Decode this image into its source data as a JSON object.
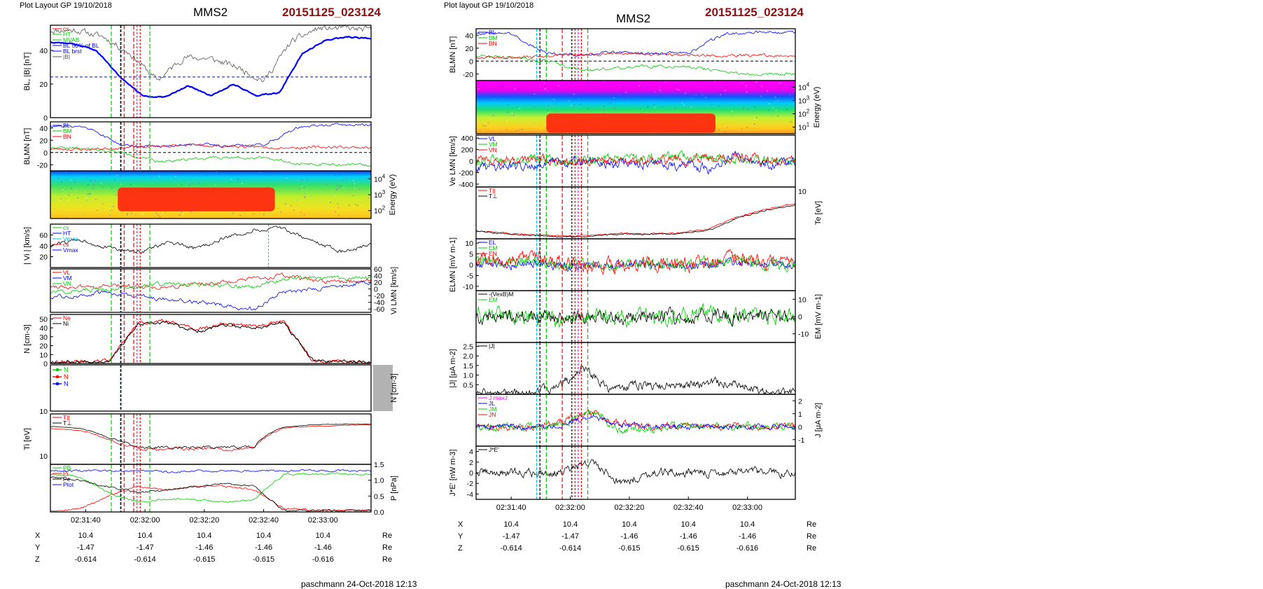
{
  "left": {
    "layout_note": "Plot Layout GP 19/10/2018",
    "spacecraft": "MMS2",
    "event": "20151125_023124",
    "footer": "paschmann 24-Oct-2018 12:13",
    "time_ticks": [
      "02:31:40",
      "02:32:00",
      "02:32:20",
      "02:32:40",
      "02:33:00"
    ],
    "ephem": {
      "rows": [
        {
          "name": "X",
          "values": [
            "10.4",
            "10.4",
            "10.4",
            "10.4",
            "10.4"
          ],
          "unit": "Re"
        },
        {
          "name": "Y",
          "values": [
            "-1.47",
            "-1.47",
            "-1.46",
            "-1.46",
            "-1.46"
          ],
          "unit": "Re"
        },
        {
          "name": "Z",
          "values": [
            "-0.614",
            "-0.614",
            "-0.615",
            "-0.615",
            "-0.616"
          ],
          "unit": "Re"
        }
      ]
    }
  },
  "right": {
    "layout_note": "Plot layout GP 19/10/2018",
    "spacecraft": "MMS2",
    "event": "20151125_023124",
    "footer": "paschmann 24-Oct-2018 12:13",
    "time_ticks": [
      "02:31:40",
      "02:32:00",
      "02:32:20",
      "02:32:40",
      "02:33:00"
    ],
    "ephem": {
      "rows": [
        {
          "name": "X",
          "values": [
            "10.4",
            "10.4",
            "10.4",
            "10.4",
            "10.4"
          ],
          "unit": "Re"
        },
        {
          "name": "Y",
          "values": [
            "-1.47",
            "-1.47",
            "-1.46",
            "-1.46",
            "-1.46"
          ],
          "unit": "Re"
        },
        {
          "name": "Z",
          "values": [
            "-0.614",
            "-0.614",
            "-0.615",
            "-0.615",
            "-0.616"
          ],
          "unit": "Re"
        }
      ]
    }
  },
  "colors": {
    "title_red": "#8b1010",
    "blue": "#0000ff",
    "red": "#ff0000",
    "green": "#00cc00",
    "magenta": "#ff00ff",
    "cyan": "#00c0e0",
    "black": "#000000"
  },
  "chart_data": [
    {
      "id": "left",
      "type": "line",
      "time_range": [
        "02:31:20",
        "02:33:15"
      ],
      "panels": [
        {
          "id": "L1",
          "ylabel": "B_L, |B| [nT]",
          "ylim": [
            0,
            55
          ],
          "ticks": [
            "40",
            "20",
            "0"
          ],
          "legend": [
            "cs",
            "HT",
            "MVAB",
            "BL 50% of BL",
            "BL brst",
            "|B|"
          ],
          "series": [
            {
              "name": "BL",
              "color": "#0000ff",
              "t": [
                "02:31:20",
                "02:31:35",
                "02:31:45",
                "02:31:52",
                "02:31:58",
                "02:32:05",
                "02:32:12",
                "02:32:20",
                "02:32:27",
                "02:32:33",
                "02:32:38",
                "02:32:42",
                "02:32:46",
                "02:33:00",
                "02:33:15"
              ],
              "values": [
                45,
                44,
                40,
                25,
                13,
                12,
                19,
                13,
                20,
                13,
                15,
                38,
                46,
                48,
                47
              ]
            },
            {
              "name": "|B|",
              "color": "#000000",
              "t": [
                "02:31:20",
                "02:31:35",
                "02:31:45",
                "02:31:52",
                "02:31:58",
                "02:32:05",
                "02:32:15",
                "02:32:25",
                "02:32:35",
                "02:32:42",
                "02:32:46",
                "02:33:00",
                "02:33:15"
              ],
              "values": [
                52,
                52,
                48,
                38,
                22,
                36,
                35,
                30,
                22,
                45,
                53,
                53,
                52
              ]
            }
          ]
        },
        {
          "id": "L2",
          "ylabel": "B_LMN [nT]",
          "ylim": [
            -30,
            50
          ],
          "ticks": [
            "40",
            "20",
            "0",
            "-20"
          ],
          "legend": [
            "BL",
            "BM",
            "BN"
          ],
          "series": [
            {
              "name": "BL",
              "color": "#0000ff",
              "values": [
                44,
                42,
                12,
                10,
                14,
                11,
                13,
                42,
                45,
                45
              ]
            },
            {
              "name": "BM",
              "color": "#00cc00",
              "values": [
                8,
                6,
                0,
                -15,
                -10,
                -8,
                -8,
                -18,
                -20,
                -20
              ]
            },
            {
              "name": "BN",
              "color": "#ff0000",
              "values": [
                6,
                5,
                8,
                10,
                12,
                10,
                9,
                8,
                9,
                8
              ]
            }
          ]
        },
        {
          "id": "L3",
          "ylabel": "Energy (eV)",
          "type": "heatmap",
          "ticks": [
            "10^4",
            "10^3",
            "10^2"
          ]
        },
        {
          "id": "L4",
          "ylabel": "| V_i | [km/s]",
          "ylim": [
            0,
            80
          ],
          "ticks": [
            "60",
            "40",
            "20"
          ],
          "legend": [
            "cs",
            "HT",
            "Vmax",
            "cs",
            "Vmax"
          ],
          "series": [
            {
              "name": "|Vi|",
              "color": "#000000",
              "values": [
                40,
                52,
                36,
                28,
                45,
                35,
                55,
                68,
                72,
                48,
                30,
                42
              ]
            }
          ]
        },
        {
          "id": "L5",
          "ylabel": "V_i LMN [km/s]",
          "ylim": [
            -70,
            60
          ],
          "ticks": [
            "60",
            "40",
            "20",
            "0",
            "-20",
            "-40",
            "-60"
          ],
          "legend": [
            "VL",
            "VM",
            "VN"
          ],
          "series": [
            {
              "name": "VL",
              "color": "#ff0000",
              "values": [
                10,
                5,
                8,
                10,
                5,
                15,
                20,
                30,
                40,
                25,
                20,
                30
              ]
            },
            {
              "name": "VM",
              "color": "#0000ff",
              "values": [
                -25,
                -20,
                -10,
                -20,
                -30,
                -40,
                -50,
                -60,
                -10,
                0,
                10,
                20
              ]
            },
            {
              "name": "VN",
              "color": "#00cc00",
              "values": [
                -10,
                -5,
                0,
                10,
                15,
                12,
                10,
                5,
                30,
                35,
                30,
                35
              ]
            }
          ]
        },
        {
          "id": "L6",
          "ylabel": "N [cm^-3]",
          "ylim": [
            0,
            55
          ],
          "ticks": [
            "50",
            "40",
            "30",
            "20",
            "10",
            "0"
          ],
          "legend": [
            "Ne",
            "Ni"
          ],
          "series": [
            {
              "name": "Ne",
              "color": "#ff0000",
              "values": [
                2,
                2,
                3,
                45,
                48,
                38,
                45,
                42,
                48,
                3,
                2,
                2
              ]
            },
            {
              "name": "Ni",
              "color": "#000000",
              "values": [
                2,
                2,
                3,
                43,
                46,
                36,
                43,
                40,
                46,
                3,
                2,
                2
              ]
            }
          ]
        },
        {
          "id": "L7",
          "ylabel": "N [cm^-3]",
          "legend": [
            "N",
            "N",
            "N"
          ],
          "ticks": [
            "10^3"
          ]
        },
        {
          "id": "L8",
          "ylabel": "T_i [eV]",
          "ticks": [
            "10^2"
          ],
          "legend": [
            "T||",
            "T⊥"
          ],
          "series": [
            {
              "name": "T||",
              "color": "#ff0000",
              "values": [
                700,
                600,
                300,
                150,
                150,
                160,
                150,
                160,
                700,
                800,
                850,
                900
              ]
            },
            {
              "name": "T⊥",
              "color": "#000000",
              "values": [
                800,
                700,
                350,
                170,
                170,
                180,
                175,
                180,
                750,
                900,
                950,
                950
              ]
            }
          ]
        },
        {
          "id": "L9",
          "ylabel": "P [nPa]",
          "ylim": [
            0,
            1.5
          ],
          "ticks": [
            "1.5",
            "1.0",
            "0.5",
            "0.0"
          ],
          "legend": [
            "PB",
            "Pi",
            "Pe",
            "Ptot"
          ],
          "series": [
            {
              "name": "PB",
              "color": "#00cc00",
              "values": [
                1.2,
                1.1,
                0.6,
                0.3,
                0.4,
                0.4,
                0.3,
                0.4,
                1.2,
                1.2,
                1.2,
                1.2
              ]
            },
            {
              "name": "Pi",
              "color": "#ff0000",
              "values": [
                0.05,
                0.1,
                0.5,
                0.8,
                0.7,
                0.8,
                0.8,
                0.7,
                0.1,
                0.05,
                0.05,
                0.05
              ]
            },
            {
              "name": "Pe",
              "color": "#000000",
              "values": [
                1.1,
                1.0,
                0.8,
                0.6,
                0.7,
                0.8,
                0.9,
                0.8,
                0.05,
                0.05,
                0.05,
                0.05
              ]
            },
            {
              "name": "Ptot",
              "color": "#0000ff",
              "values": [
                1.3,
                1.3,
                1.3,
                1.3,
                1.25,
                1.3,
                1.3,
                1.3,
                1.3,
                1.3,
                1.3,
                1.3
              ]
            }
          ]
        }
      ]
    },
    {
      "id": "right",
      "type": "line",
      "time_range": [
        "02:31:20",
        "02:33:15"
      ],
      "panels": [
        {
          "id": "R1",
          "ylabel": "B_LMN [nT]",
          "ylim": [
            -30,
            50
          ],
          "ticks": [
            "40",
            "20",
            "0",
            "-20"
          ],
          "legend": [
            "BL",
            "BM",
            "BN"
          ],
          "series": [
            {
              "name": "BL",
              "color": "#0000ff",
              "values": [
                44,
                42,
                12,
                10,
                14,
                11,
                13,
                42,
                45,
                45
              ]
            },
            {
              "name": "BM",
              "color": "#00cc00",
              "values": [
                8,
                6,
                0,
                -15,
                -10,
                -8,
                -8,
                -18,
                -20,
                -20
              ]
            },
            {
              "name": "BN",
              "color": "#ff0000",
              "values": [
                6,
                5,
                8,
                10,
                12,
                10,
                9,
                8,
                9,
                8
              ]
            }
          ]
        },
        {
          "id": "R2",
          "ylabel": "Energy (eV)",
          "type": "heatmap",
          "ticks": [
            "10^4",
            "10^3",
            "10^2",
            "10^1"
          ]
        },
        {
          "id": "R3",
          "ylabel": "V_e LMN [km/s]",
          "ylim": [
            -450,
            450
          ],
          "ticks": [
            "400",
            "200",
            "0",
            "-200",
            "-400"
          ],
          "legend": [
            "VL",
            "VM",
            "VN"
          ]
        },
        {
          "id": "R4",
          "ylabel": "T_e [eV]",
          "ticks": [
            "10^2"
          ],
          "legend": [
            "T||",
            "T⊥"
          ]
        },
        {
          "id": "R5",
          "ylabel": "E_LMN [mV m^-1]",
          "ylim": [
            -12,
            12
          ],
          "ticks": [
            "10",
            "5",
            "0",
            "-5",
            "-10"
          ],
          "legend": [
            "EL",
            "EM",
            "EN"
          ]
        },
        {
          "id": "R6",
          "ylabel": "E_M [mV m^-1]",
          "ylim": [
            -15,
            15
          ],
          "ticks": [
            "10",
            "0",
            "-10"
          ],
          "legend": [
            "-(VexB)M",
            "EM"
          ]
        },
        {
          "id": "R7",
          "ylabel": "|J| [μA m^-2]",
          "ylim": [
            0,
            2.7
          ],
          "ticks": [
            "2.5",
            "2.0",
            "1.5",
            "1.0",
            "0.5"
          ],
          "legend": [
            "|J|"
          ]
        },
        {
          "id": "R8",
          "ylabel": "J [μA m^-2]",
          "ylim": [
            -1.5,
            2.5
          ],
          "ticks": [
            "2",
            "1",
            "0",
            "-1"
          ],
          "legend": [
            "J maxJ",
            "JL",
            "JM",
            "JN"
          ]
        },
        {
          "id": "R9",
          "ylabel": "J*E' [nW m^-3]",
          "ylim": [
            -5,
            5
          ],
          "ticks": [
            "4",
            "2",
            "0",
            "-2",
            "-4"
          ],
          "legend": [
            "J*E'"
          ]
        }
      ]
    }
  ]
}
